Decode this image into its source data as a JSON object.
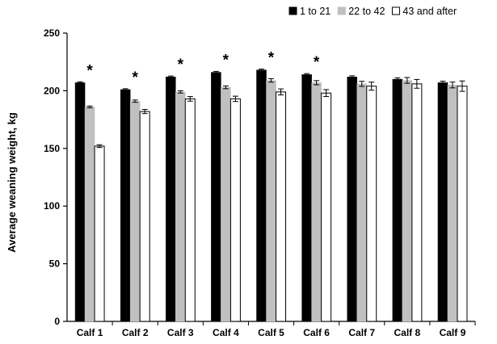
{
  "chart_data": {
    "type": "bar",
    "title": "",
    "xlabel": "",
    "ylabel": "Average weaning weight, kg",
    "ylim": [
      0,
      250
    ],
    "yticks": [
      0,
      50,
      100,
      150,
      200,
      250
    ],
    "grid": false,
    "legend_position": "top-right",
    "categories": [
      "Calf 1",
      "Calf 2",
      "Calf 3",
      "Calf 4",
      "Calf 5",
      "Calf 6",
      "Calf 7",
      "Calf 8",
      "Calf 9"
    ],
    "series": [
      {
        "name": "1 to 21",
        "color": "#000000",
        "values": [
          207,
          201,
          212,
          216,
          218,
          214,
          212,
          210,
          207
        ],
        "errors": [
          0.8,
          0.8,
          0.8,
          0.8,
          0.8,
          0.9,
          1.0,
          1.2,
          1.3
        ]
      },
      {
        "name": "22 to 42",
        "color": "#c0c0c0",
        "values": [
          186,
          191,
          199,
          203,
          209,
          207,
          206,
          209,
          205
        ],
        "errors": [
          0.8,
          1.0,
          1.0,
          1.2,
          1.5,
          1.8,
          2.2,
          2.5,
          2.5
        ]
      },
      {
        "name": "43 and after",
        "color": "#ffffff",
        "values": [
          152,
          182,
          193,
          193,
          199,
          198,
          204,
          206,
          204
        ],
        "errors": [
          1.2,
          1.8,
          2.0,
          2.3,
          2.6,
          3.0,
          3.5,
          3.8,
          4.5
        ]
      }
    ],
    "significance_markers": [
      "*",
      "*",
      "*",
      "*",
      "*",
      "*",
      "",
      "",
      ""
    ]
  }
}
